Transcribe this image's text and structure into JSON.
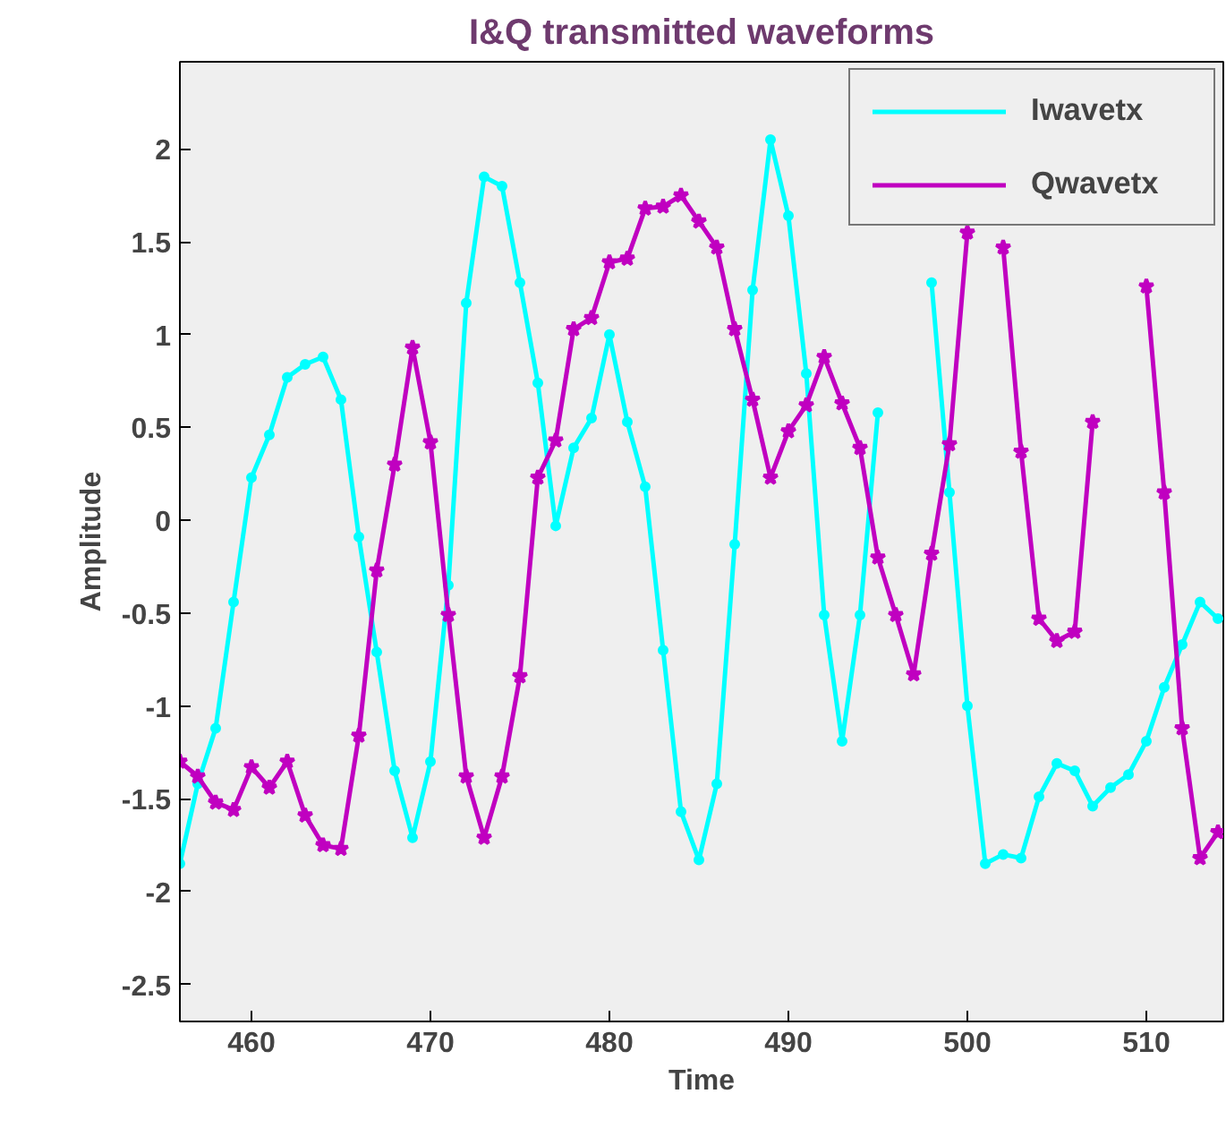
{
  "chart_data": {
    "type": "line",
    "title": "I&Q transmitted waveforms",
    "xlabel": "Time",
    "ylabel": "Amplitude",
    "x": [
      456,
      457,
      458,
      459,
      460,
      461,
      462,
      463,
      464,
      465,
      466,
      467,
      468,
      469,
      470,
      471,
      472,
      473,
      474,
      475,
      476,
      477,
      478,
      479,
      480,
      481,
      482,
      483,
      484,
      485,
      486,
      487,
      488,
      489,
      490,
      491,
      492,
      493,
      494,
      495,
      496,
      497,
      498,
      499,
      500,
      501,
      502,
      503,
      504,
      505,
      506,
      507,
      508,
      509,
      510,
      511,
      512,
      513,
      514
    ],
    "series": [
      {
        "name": "Iwavetx",
        "color": "#00ffff",
        "marker": "circle",
        "values": [
          -1.85,
          -1.42,
          -1.12,
          -0.44,
          0.23,
          0.46,
          0.77,
          0.84,
          0.88,
          0.65,
          -0.09,
          -0.71,
          -1.35,
          -1.71,
          -1.3,
          -0.35,
          1.17,
          1.85,
          1.8,
          1.28,
          0.74,
          -0.03,
          0.39,
          0.55,
          1.0,
          0.53,
          0.18,
          -0.7,
          -1.57,
          -1.83,
          -1.42,
          -0.13,
          1.24,
          2.05,
          1.64,
          0.79,
          -0.51,
          -1.19,
          -0.51,
          0.58,
          null,
          null,
          1.28,
          0.15,
          -1.0,
          -1.85,
          -1.8,
          -1.82,
          -1.49,
          -1.31,
          -1.35,
          -1.54,
          -1.44,
          -1.37,
          -1.19,
          -0.9,
          -0.67,
          -0.44,
          -0.53
        ]
      },
      {
        "name": "Qwavetx",
        "color": "#c000c0",
        "marker": "star",
        "values": [
          -1.3,
          -1.38,
          -1.52,
          -1.56,
          -1.33,
          -1.44,
          -1.3,
          -1.59,
          -1.75,
          -1.77,
          -1.16,
          -0.27,
          0.3,
          0.93,
          0.42,
          -0.51,
          -1.38,
          -1.71,
          -1.38,
          -0.84,
          0.23,
          0.43,
          1.03,
          1.09,
          1.39,
          1.41,
          1.68,
          1.69,
          1.75,
          1.61,
          1.47,
          1.03,
          0.65,
          0.23,
          0.48,
          0.62,
          0.88,
          0.63,
          0.39,
          -0.2,
          -0.51,
          -0.83,
          -0.18,
          0.41,
          1.55,
          null,
          1.47,
          0.37,
          -0.53,
          -0.65,
          -0.6,
          0.53,
          null,
          null,
          1.26,
          0.15,
          -1.12,
          -1.82,
          -1.68
        ]
      }
    ],
    "xlim": [
      456,
      514.3
    ],
    "ylim": [
      -2.7,
      2.47
    ],
    "xticks": [
      460,
      470,
      480,
      490,
      500,
      510
    ],
    "yticks": [
      -2.5,
      -2,
      -1.5,
      -1,
      -0.5,
      0,
      0.5,
      1,
      1.5,
      2
    ],
    "legend": "top right",
    "line_style": "solid"
  }
}
